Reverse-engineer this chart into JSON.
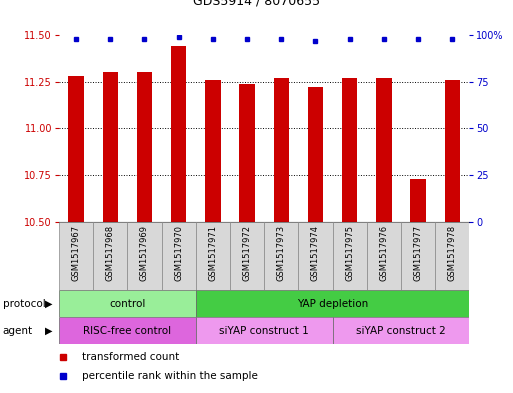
{
  "title": "GDS5914 / 8070655",
  "samples": [
    "GSM1517967",
    "GSM1517968",
    "GSM1517969",
    "GSM1517970",
    "GSM1517971",
    "GSM1517972",
    "GSM1517973",
    "GSM1517974",
    "GSM1517975",
    "GSM1517976",
    "GSM1517977",
    "GSM1517978"
  ],
  "bar_values": [
    11.28,
    11.3,
    11.3,
    11.44,
    11.26,
    11.24,
    11.27,
    11.22,
    11.27,
    11.27,
    10.73,
    11.26
  ],
  "percentile_values": [
    98,
    98,
    98,
    99,
    98,
    98,
    98,
    97,
    98,
    98,
    98,
    98
  ],
  "ylim_left": [
    10.5,
    11.5
  ],
  "ylim_right": [
    0,
    100
  ],
  "yticks_left": [
    10.5,
    10.75,
    11.0,
    11.25,
    11.5
  ],
  "yticks_right": [
    0,
    25,
    50,
    75,
    100
  ],
  "bar_color": "#cc0000",
  "dot_color": "#0000cc",
  "protocol_groups": [
    {
      "label": "control",
      "start": 0,
      "end": 3,
      "color": "#99ee99"
    },
    {
      "label": "YAP depletion",
      "start": 4,
      "end": 11,
      "color": "#44cc44"
    }
  ],
  "agent_groups": [
    {
      "label": "RISC-free control",
      "start": 0,
      "end": 3,
      "color": "#dd66dd"
    },
    {
      "label": "siYAP construct 1",
      "start": 4,
      "end": 7,
      "color": "#ee99ee"
    },
    {
      "label": "siYAP construct 2",
      "start": 8,
      "end": 11,
      "color": "#ee99ee"
    }
  ],
  "legend_items": [
    {
      "label": "transformed count",
      "color": "#cc0000"
    },
    {
      "label": "percentile rank within the sample",
      "color": "#0000cc"
    }
  ],
  "bar_width": 0.45,
  "title_fontsize": 9,
  "tick_fontsize": 7,
  "label_fontsize": 7.5,
  "sample_fontsize": 6,
  "row_fontsize": 7.5,
  "legend_fontsize": 7.5
}
